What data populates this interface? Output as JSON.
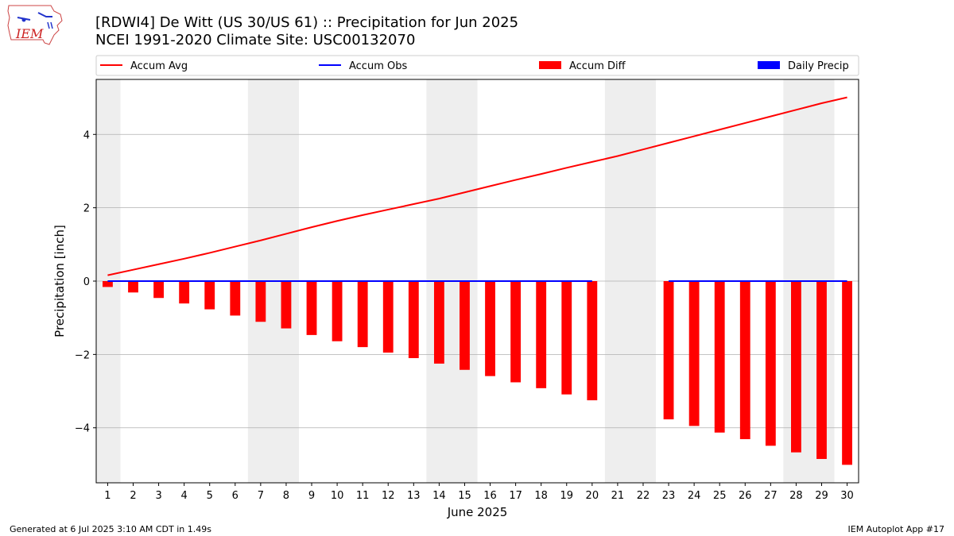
{
  "title_line1": "[RDWI4] De Witt (US 30/US 61) :: Precipitation for Jun 2025",
  "title_line2": "NCEI 1991-2020 Climate Site: USC00132070",
  "logo_text": "IEM",
  "footer_left": "Generated at 6 Jul 2025 3:10 AM CDT in 1.49s",
  "footer_right": "IEM Autoplot App #17",
  "colors": {
    "avg": "#ff0000",
    "obs": "#0000ff",
    "diff": "#ff0000",
    "daily": "#0000ff",
    "weekend": "#eeeeee",
    "grid": "#b0b0b0"
  },
  "chart_data": {
    "type": "bar",
    "xlabel": "June 2025",
    "ylabel": "Precipitation [inch]",
    "ylim": [
      -5.5,
      5.5
    ],
    "yticks": [
      -4,
      -2,
      0,
      2,
      4
    ],
    "ytick_labels": [
      "−4",
      "−2",
      "0",
      "2",
      "4"
    ],
    "grid": true,
    "legend_position": "top",
    "legend": [
      "Accum Avg",
      "Accum Obs",
      "Accum Diff",
      "Daily Precip"
    ],
    "weekend_bands": [
      [
        1,
        1
      ],
      [
        7,
        8
      ],
      [
        14,
        15
      ],
      [
        21,
        22
      ],
      [
        28,
        29
      ]
    ],
    "x": [
      1,
      2,
      3,
      4,
      5,
      6,
      7,
      8,
      9,
      10,
      11,
      12,
      13,
      14,
      15,
      16,
      17,
      18,
      19,
      20,
      21,
      22,
      23,
      24,
      25,
      26,
      27,
      28,
      29,
      30
    ],
    "series": [
      {
        "name": "Accum Avg",
        "kind": "line",
        "values": [
          0.16,
          0.31,
          0.46,
          0.61,
          0.77,
          0.94,
          1.11,
          1.29,
          1.47,
          1.64,
          1.8,
          1.95,
          2.1,
          2.25,
          2.42,
          2.59,
          2.76,
          2.92,
          3.09,
          3.25,
          3.41,
          3.59,
          3.77,
          3.95,
          4.13,
          4.31,
          4.49,
          4.67,
          4.85,
          5.01
        ]
      },
      {
        "name": "Accum Obs",
        "kind": "line",
        "values": [
          0,
          0,
          0,
          0,
          0,
          0,
          0,
          0,
          0,
          0,
          0,
          0,
          0,
          0,
          0,
          0,
          0,
          0,
          0,
          0,
          null,
          null,
          0,
          0,
          0,
          0,
          0,
          0,
          0,
          0
        ]
      },
      {
        "name": "Accum Diff",
        "kind": "bar",
        "values": [
          -0.16,
          -0.31,
          -0.46,
          -0.61,
          -0.77,
          -0.94,
          -1.11,
          -1.29,
          -1.47,
          -1.64,
          -1.8,
          -1.95,
          -2.1,
          -2.25,
          -2.42,
          -2.59,
          -2.76,
          -2.92,
          -3.09,
          -3.25,
          null,
          null,
          -3.77,
          -3.95,
          -4.13,
          -4.31,
          -4.49,
          -4.67,
          -4.85,
          -5.01
        ]
      },
      {
        "name": "Daily Precip",
        "kind": "bar",
        "values": [
          0,
          0,
          0,
          0,
          0,
          0,
          0,
          0,
          0,
          0,
          0,
          0,
          0,
          0,
          0,
          0,
          0,
          0,
          0,
          0,
          null,
          null,
          0,
          0,
          0,
          0,
          0,
          0,
          0,
          0
        ]
      }
    ]
  }
}
